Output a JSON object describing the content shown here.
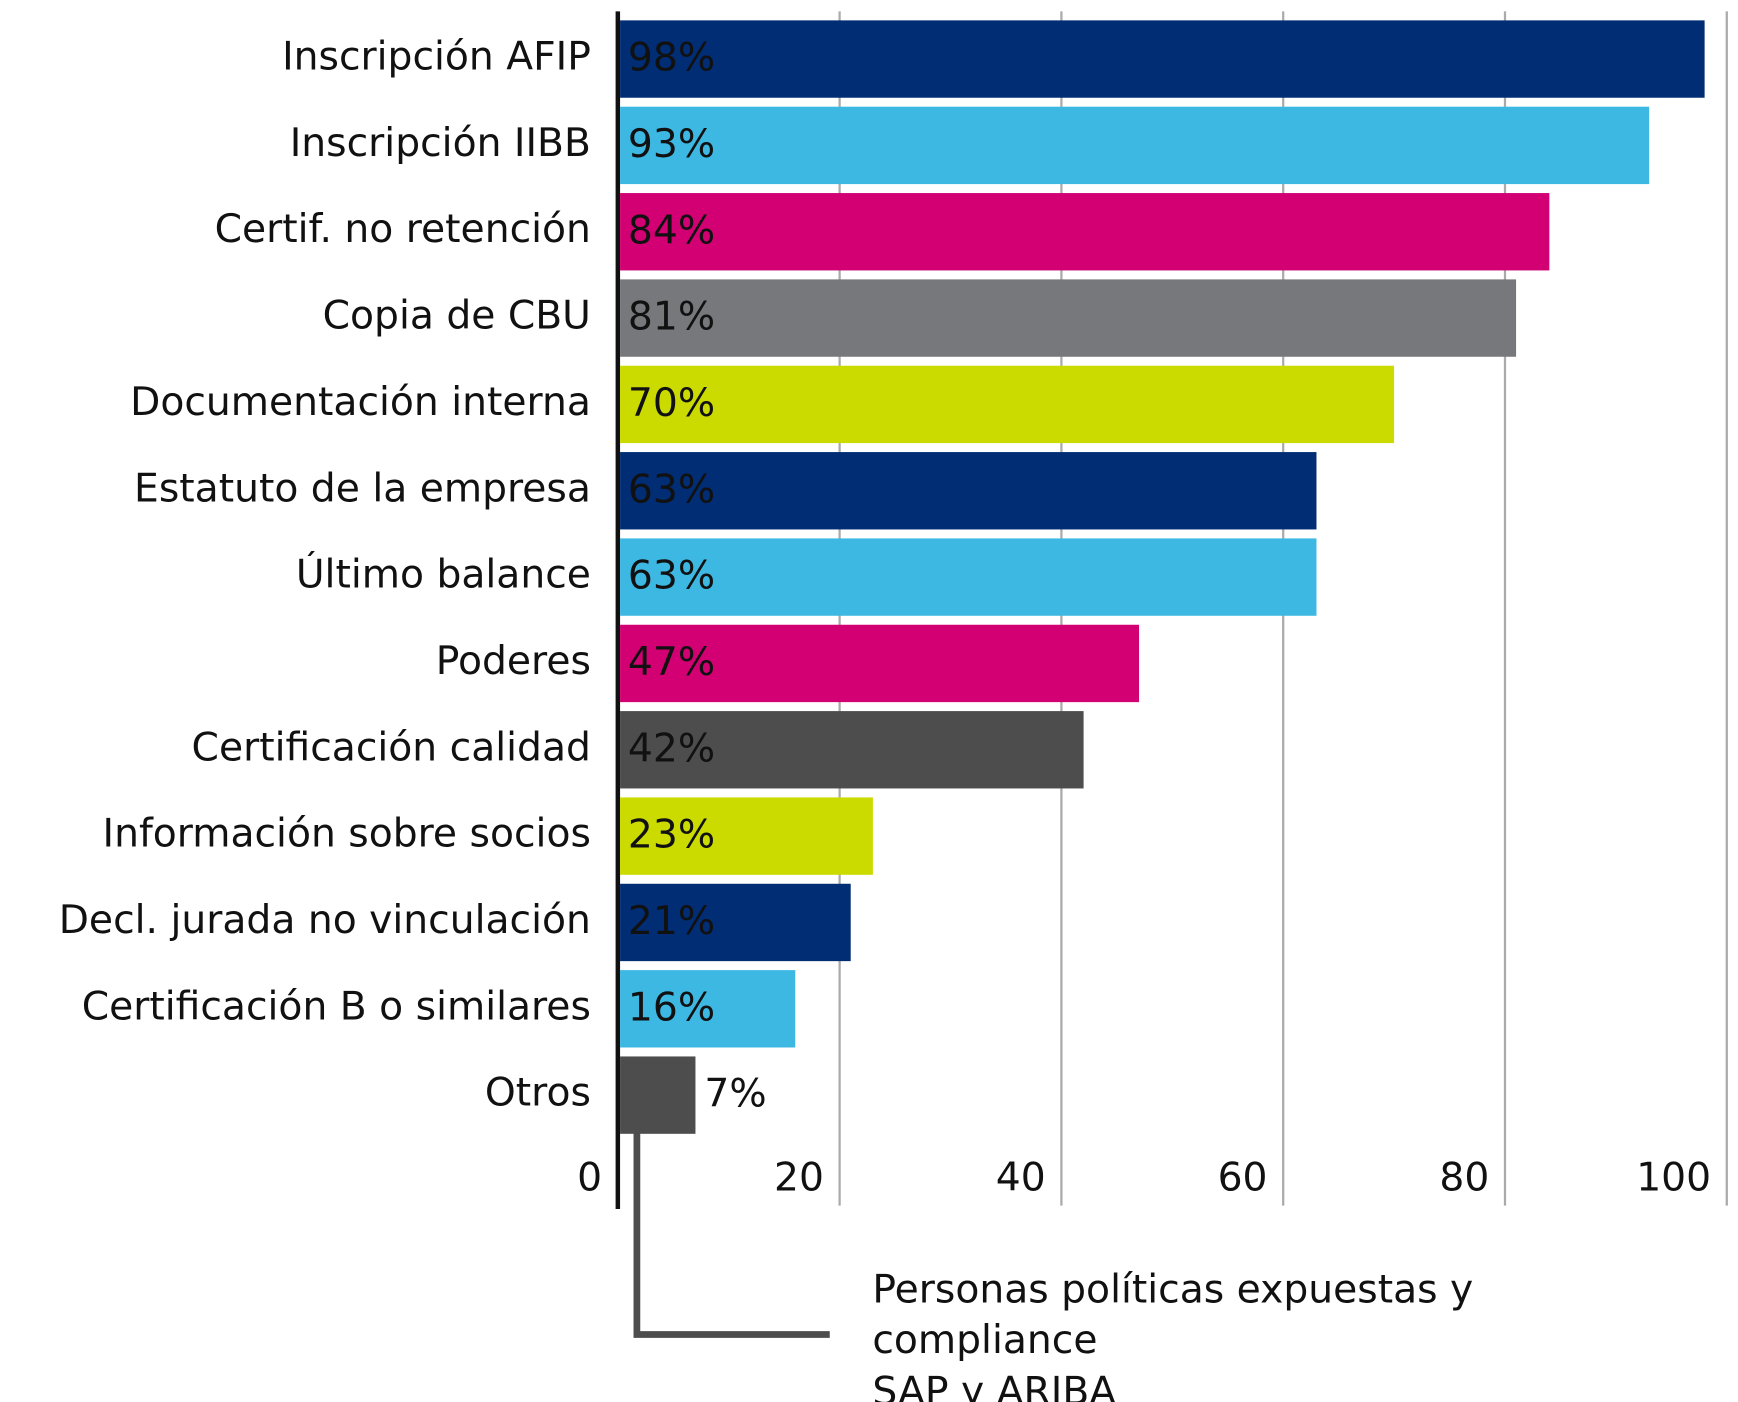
{
  "chart_data": {
    "type": "barh",
    "categories": [
      "Inscripción AFIP",
      "Inscripción IIBB",
      "Certif. no retención",
      "Copia de CBU",
      "Documentación interna",
      "Estatuto de la empresa",
      "Último balance",
      "Poderes",
      "Certificación calidad",
      "Información sobre socios",
      "Decl. jurada no vinculación",
      "Certificación B o similares",
      "Otros"
    ],
    "values": [
      98,
      93,
      84,
      81,
      70,
      63,
      63,
      47,
      42,
      23,
      21,
      16,
      7
    ],
    "value_labels": [
      "98%",
      "93%",
      "84%",
      "81%",
      "70%",
      "63%",
      "63%",
      "47%",
      "42%",
      "23%",
      "21%",
      "16%",
      "7%"
    ],
    "colors": [
      "#002d74",
      "#3db8e3",
      "#d20073",
      "#77787b",
      "#cbdb00",
      "#002d74",
      "#3db8e3",
      "#d20073",
      "#4d4d4d",
      "#cbdb00",
      "#002d74",
      "#3db8e3",
      "#4d4d4d"
    ],
    "xlim": [
      0,
      100
    ],
    "xticks": [
      0,
      20,
      40,
      60,
      80,
      100
    ],
    "grid": true,
    "annotation": [
      "Personas políticas expuestas y",
      "compliance",
      "SAP y ARIBA"
    ]
  }
}
